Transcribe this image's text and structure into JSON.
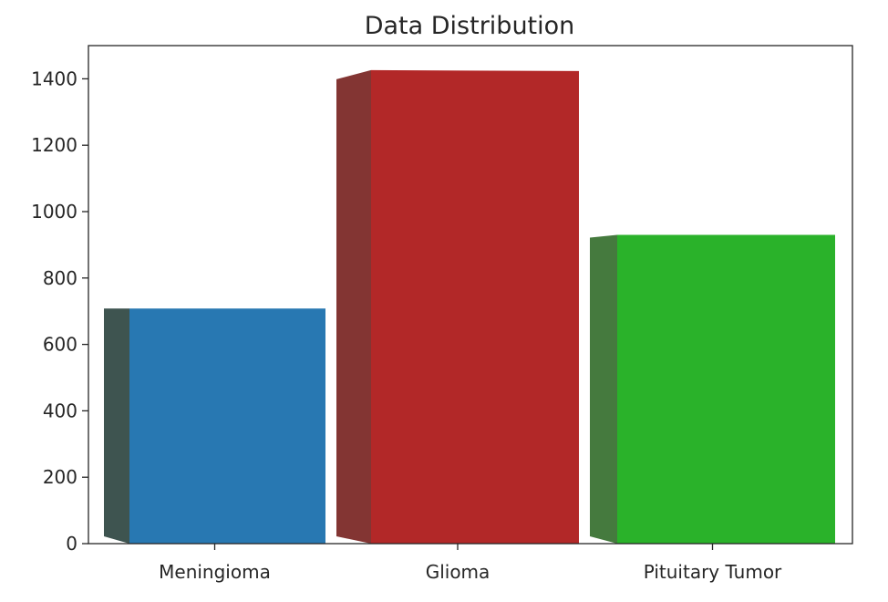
{
  "chart_data": {
    "type": "bar",
    "title": "Data Distribution",
    "xlabel": "",
    "ylabel": "",
    "categories": [
      "Meningioma",
      "Glioma",
      "Pituitary Tumor"
    ],
    "values": [
      708,
      1426,
      930
    ],
    "ylim": [
      0,
      1500
    ],
    "yticks": [
      "0",
      "200",
      "400",
      "600",
      "800",
      "1000",
      "1200",
      "1400"
    ],
    "ytick_values": [
      0,
      200,
      400,
      600,
      800,
      1000,
      1200,
      1400
    ],
    "grid": false,
    "legend": "none",
    "colors": {
      "front": [
        "#2878b2",
        "#b22828",
        "#2ab22a"
      ],
      "side": [
        "#3e5450",
        "#833533",
        "#457a3e"
      ]
    }
  }
}
